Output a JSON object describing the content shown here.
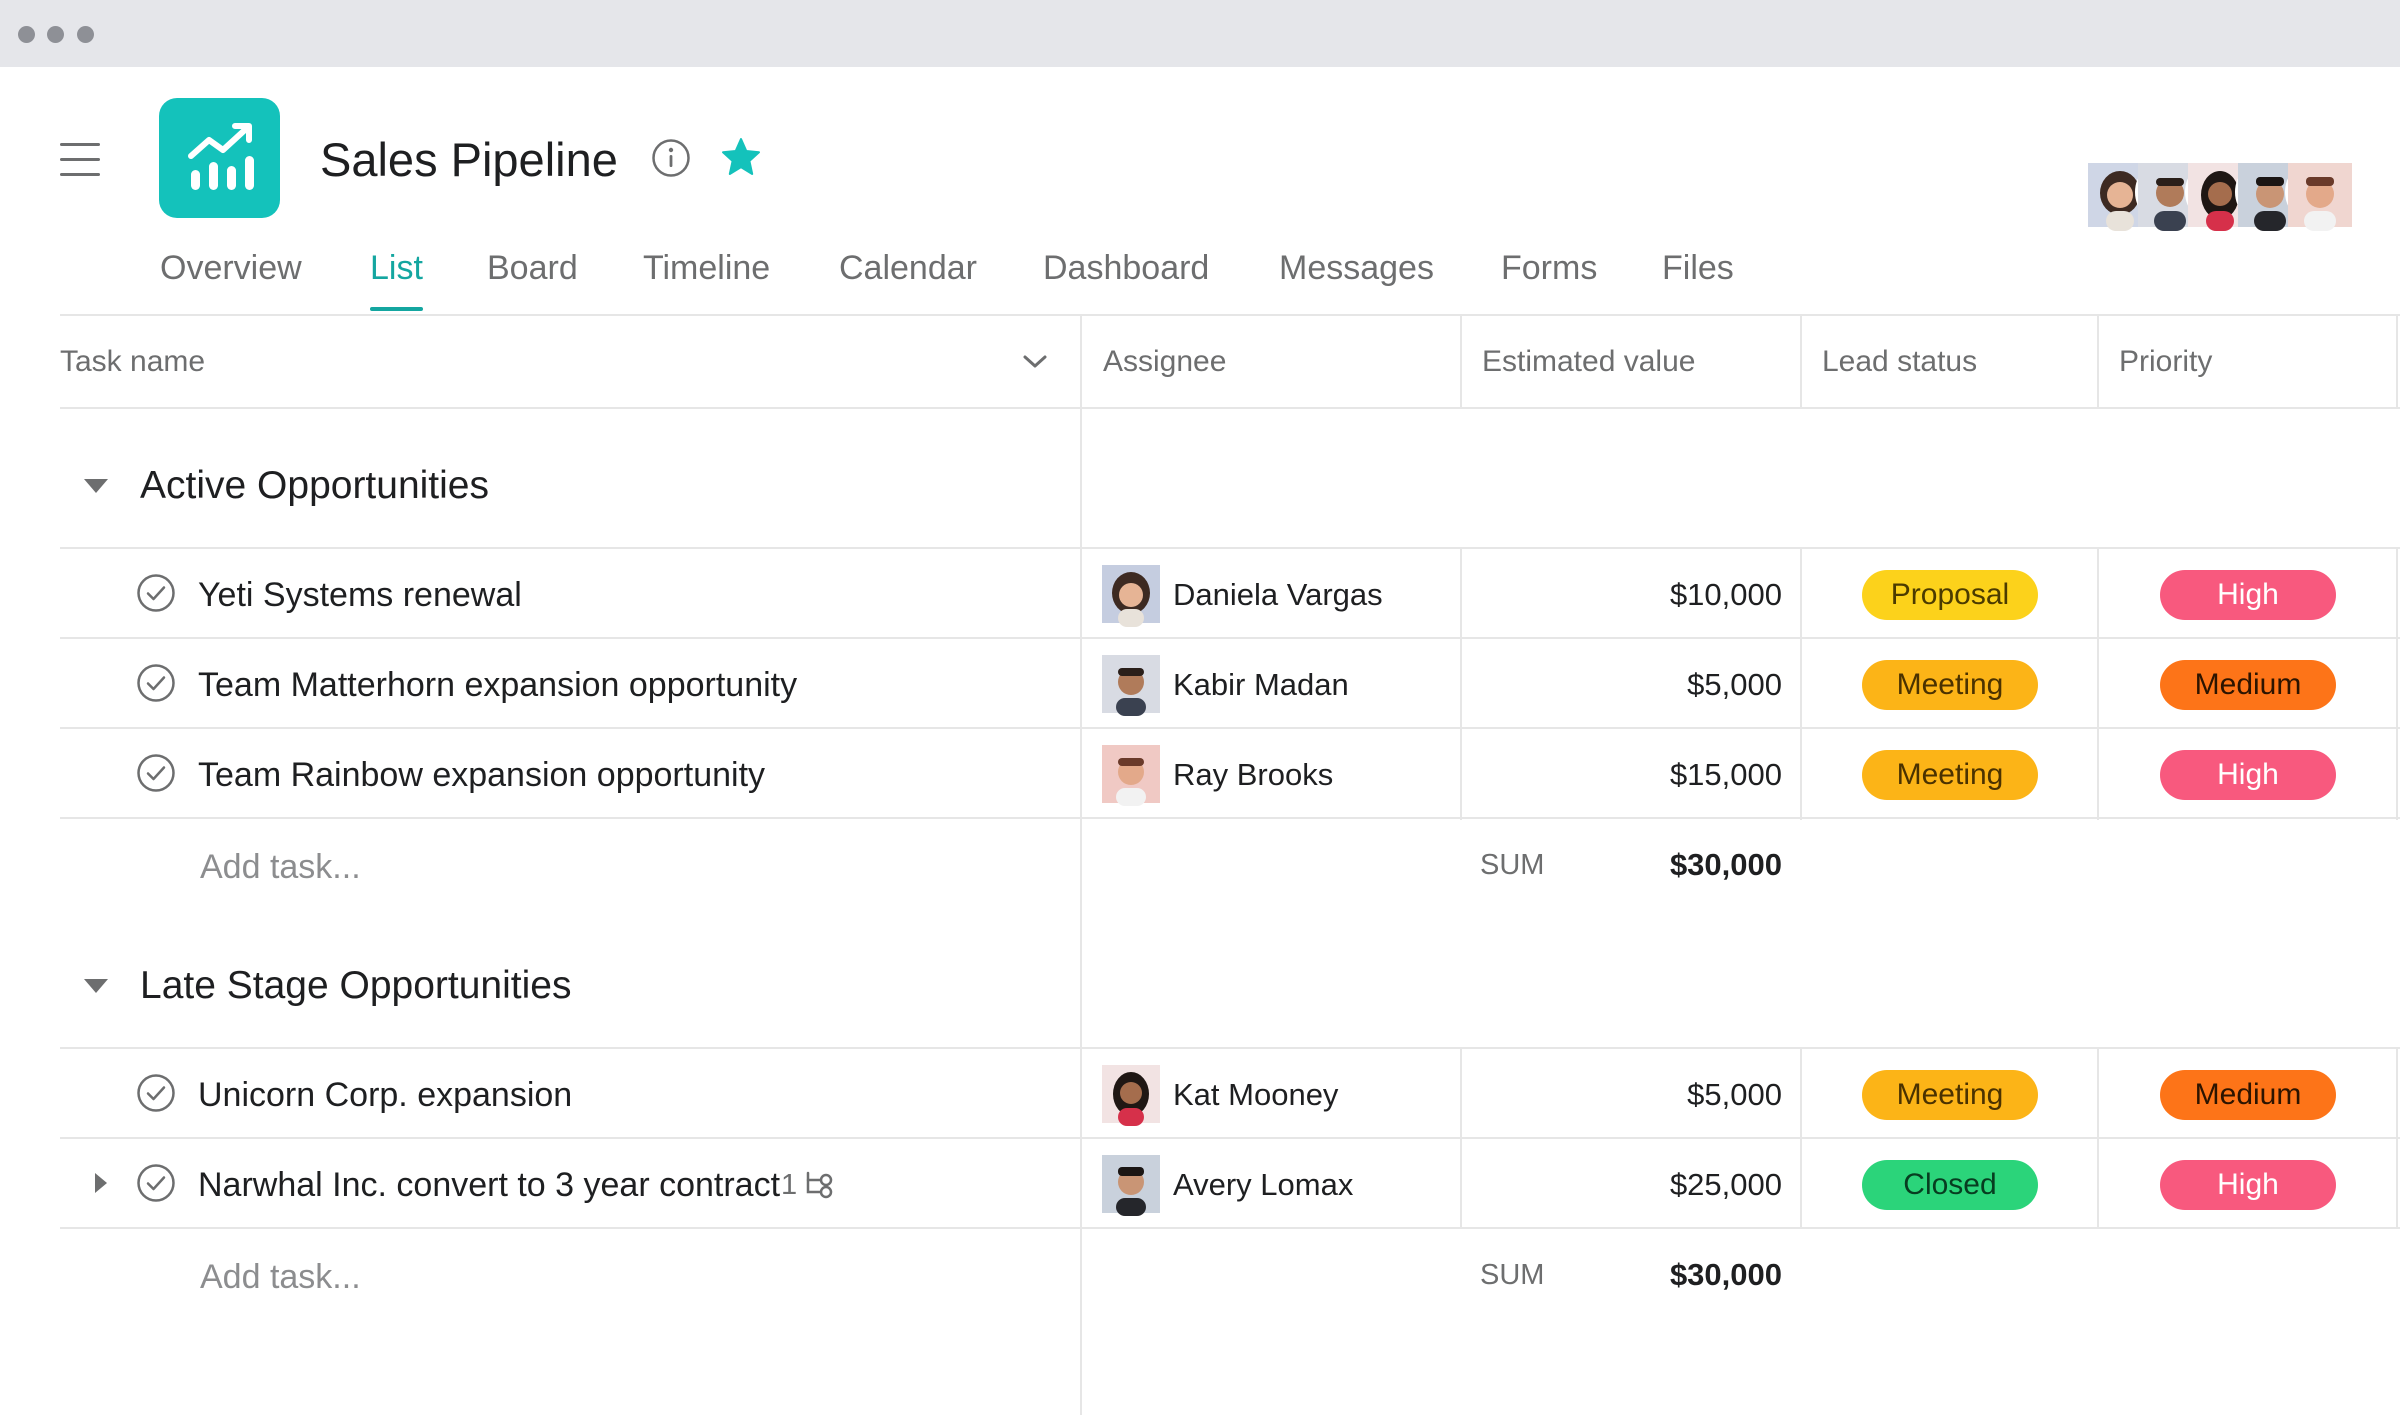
{
  "window": {
    "dots": [
      "window-dot",
      "window-dot",
      "window-dot"
    ]
  },
  "header": {
    "title": "Sales Pipeline",
    "app_icon": "chart-growth-icon",
    "app_icon_color": "#14c2bb",
    "info_icon": "info-icon",
    "star_icon": "star-icon",
    "star_color": "#14c2bb",
    "member_count": 5
  },
  "tabs": [
    {
      "label": "Overview"
    },
    {
      "label": "List",
      "active": true
    },
    {
      "label": "Board"
    },
    {
      "label": "Timeline"
    },
    {
      "label": "Calendar"
    },
    {
      "label": "Dashboard"
    },
    {
      "label": "Messages"
    },
    {
      "label": "Forms"
    },
    {
      "label": "Files"
    }
  ],
  "columns": {
    "task_name": "Task name",
    "assignee": "Assignee",
    "estimated_value": "Estimated value",
    "lead_status": "Lead status",
    "priority": "Priority"
  },
  "colors": {
    "accent": "#14a6a0",
    "proposal": "#fcd21b",
    "meeting": "#fcb417",
    "closed": "#2bd47a",
    "high": "#f8597e",
    "medium": "#fd7418"
  },
  "sections": [
    {
      "title": "Active Opportunities",
      "tasks": [
        {
          "name": "Yeti Systems renewal",
          "assignee": "Daniela Vargas",
          "value": "$10,000",
          "status": "Proposal",
          "priority": "High"
        },
        {
          "name": "Team Matterhorn expansion opportunity",
          "assignee": "Kabir Madan",
          "value": "$5,000",
          "status": "Meeting",
          "priority": "Medium"
        },
        {
          "name": "Team Rainbow expansion opportunity",
          "assignee": "Ray Brooks",
          "value": "$15,000",
          "status": "Meeting",
          "priority": "High"
        }
      ],
      "add_task": "Add task...",
      "sum_label": "SUM",
      "sum_value": "$30,000"
    },
    {
      "title": "Late Stage Opportunities",
      "tasks": [
        {
          "name": "Unicorn Corp. expansion",
          "assignee": "Kat Mooney",
          "value": "$5,000",
          "status": "Meeting",
          "priority": "Medium"
        },
        {
          "name": "Narwhal Inc. convert to 3 year contract",
          "assignee": "Avery Lomax",
          "value": "$25,000",
          "status": "Closed",
          "priority": "High",
          "subtask_count": "1"
        }
      ],
      "add_task": "Add task...",
      "sum_label": "SUM",
      "sum_value": "$30,000"
    }
  ]
}
